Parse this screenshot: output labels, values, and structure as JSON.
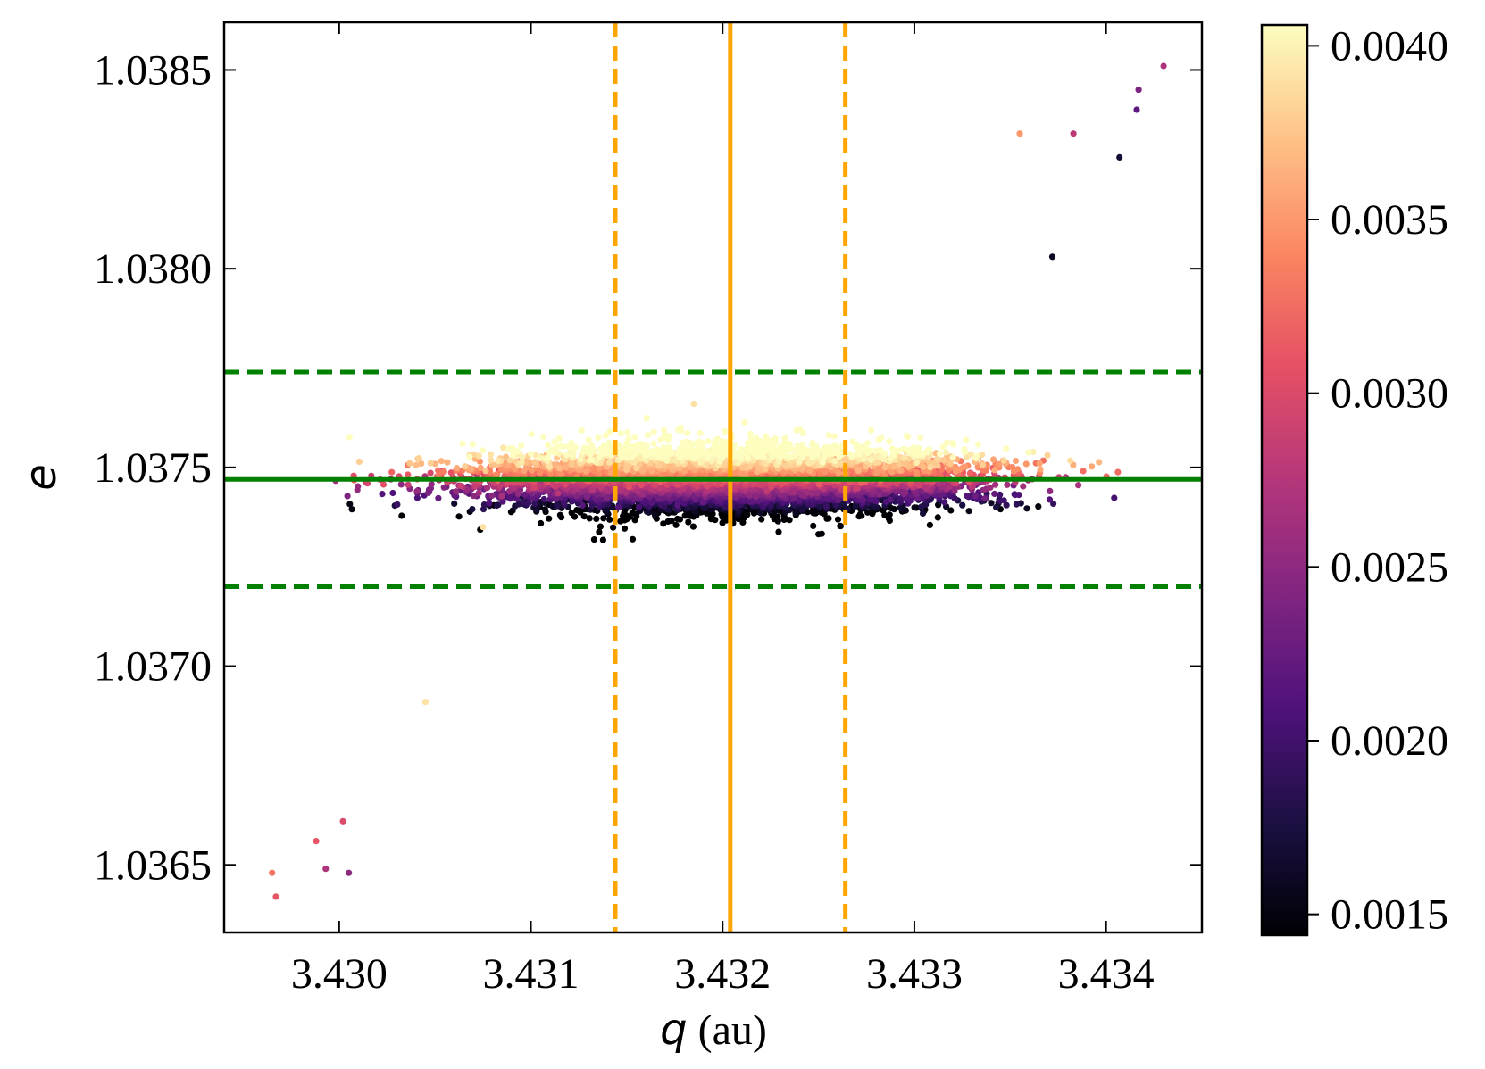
{
  "chart_data": {
    "type": "scatter",
    "xlabel": {
      "symbol": "q",
      "unit": "(au)"
    },
    "ylabel": {
      "symbol": "e"
    },
    "xlim": [
      3.4294,
      3.4345
    ],
    "ylim": [
      1.03633,
      1.03862
    ],
    "x_ticks": [
      3.43,
      3.431,
      3.432,
      3.433,
      3.434
    ],
    "x_tick_labels": [
      "3.430",
      "3.431",
      "3.432",
      "3.433",
      "3.434"
    ],
    "y_ticks": [
      1.0365,
      1.037,
      1.0375,
      1.038,
      1.0385
    ],
    "y_tick_labels": [
      "1.0365",
      "1.0370",
      "1.0375",
      "1.0380",
      "1.0385"
    ],
    "grid": false,
    "ticks_direction": "in",
    "colorbar": {
      "colormap": "magma",
      "range": [
        0.00144,
        0.00406
      ],
      "ticks": [
        0.0015,
        0.002,
        0.0025,
        0.003,
        0.0035,
        0.004
      ],
      "tick_labels": [
        "0.0015",
        "0.0020",
        "0.0025",
        "0.0030",
        "0.0035",
        "0.0040"
      ],
      "colors": [
        "#000004",
        "#1c1044",
        "#4f127b",
        "#812581",
        "#b5367a",
        "#e55064",
        "#fb8761",
        "#fec287",
        "#fcfdbf"
      ]
    },
    "point_cloud": {
      "count": 9000,
      "center_q": 3.43203,
      "center_e": 1.03747,
      "slope_de_dq": 0.00104,
      "sigma_q": 0.00058,
      "sigma_perp_e": 3.8e-05,
      "color_gradient": "high values on upper-left edge, low values on lower-right edge"
    },
    "reference_lines": [
      {
        "orientation": "vertical",
        "value": 3.43204,
        "style": "solid",
        "color": "#ffa500"
      },
      {
        "orientation": "vertical",
        "value": 3.43144,
        "style": "dashed",
        "color": "#ffa500"
      },
      {
        "orientation": "vertical",
        "value": 3.43264,
        "style": "dashed",
        "color": "#ffa500"
      },
      {
        "orientation": "horizontal",
        "value": 1.03747,
        "style": "solid",
        "color": "#008000"
      },
      {
        "orientation": "horizontal",
        "value": 1.03774,
        "style": "dashed",
        "color": "#008000"
      },
      {
        "orientation": "horizontal",
        "value": 1.0372,
        "style": "dashed",
        "color": "#008000"
      }
    ],
    "outlier_points": [
      {
        "q": 3.42965,
        "e": 1.03648,
        "c": 0.0033
      },
      {
        "q": 3.42967,
        "e": 1.03642,
        "c": 0.0031
      },
      {
        "q": 3.42988,
        "e": 1.03656,
        "c": 0.0031
      },
      {
        "q": 3.42993,
        "e": 1.03649,
        "c": 0.0027
      },
      {
        "q": 3.43005,
        "e": 1.03648,
        "c": 0.0025
      },
      {
        "q": 3.43002,
        "e": 1.03661,
        "c": 0.003
      },
      {
        "q": 3.43045,
        "e": 1.03691,
        "c": 0.0039
      },
      {
        "q": 3.43075,
        "e": 1.03735,
        "c": 0.0039
      },
      {
        "q": 3.43185,
        "e": 1.03766,
        "c": 0.0039
      },
      {
        "q": 3.43318,
        "e": 1.03752,
        "c": 0.0016
      },
      {
        "q": 3.43372,
        "e": 1.03803,
        "c": 0.0016
      },
      {
        "q": 3.43355,
        "e": 1.03834,
        "c": 0.0035
      },
      {
        "q": 3.43383,
        "e": 1.03834,
        "c": 0.0028
      },
      {
        "q": 3.43407,
        "e": 1.03828,
        "c": 0.0017
      },
      {
        "q": 3.43416,
        "e": 1.0384,
        "c": 0.0022
      },
      {
        "q": 3.43417,
        "e": 1.03845,
        "c": 0.0024
      },
      {
        "q": 3.4343,
        "e": 1.03851,
        "c": 0.0027
      }
    ]
  }
}
